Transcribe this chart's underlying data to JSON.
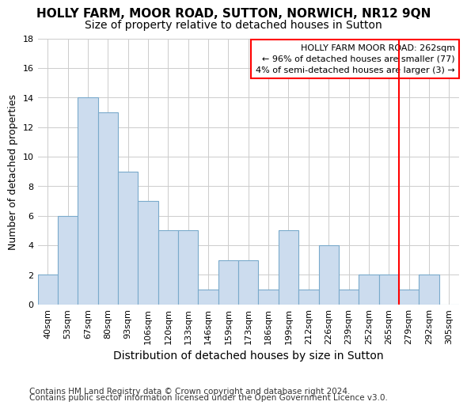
{
  "title": "HOLLY FARM, MOOR ROAD, SUTTON, NORWICH, NR12 9QN",
  "subtitle": "Size of property relative to detached houses in Sutton",
  "xlabel": "Distribution of detached houses by size in Sutton",
  "ylabel": "Number of detached properties",
  "categories": [
    "40sqm",
    "53sqm",
    "67sqm",
    "80sqm",
    "93sqm",
    "106sqm",
    "120sqm",
    "133sqm",
    "146sqm",
    "159sqm",
    "173sqm",
    "186sqm",
    "199sqm",
    "212sqm",
    "226sqm",
    "239sqm",
    "252sqm",
    "265sqm",
    "279sqm",
    "292sqm",
    "305sqm"
  ],
  "values": [
    2,
    6,
    14,
    13,
    9,
    7,
    5,
    5,
    1,
    3,
    3,
    1,
    5,
    1,
    4,
    1,
    2,
    2,
    1,
    2,
    0
  ],
  "bar_color": "#ccdcee",
  "bar_edge_color": "#7aaacb",
  "red_line_index": 17,
  "annotation_line1": "HOLLY FARM MOOR ROAD: 262sqm",
  "annotation_line2": "← 96% of detached houses are smaller (77)",
  "annotation_line3": "4% of semi-detached houses are larger (3) →",
  "ylim": [
    0,
    18
  ],
  "yticks": [
    0,
    2,
    4,
    6,
    8,
    10,
    12,
    14,
    16,
    18
  ],
  "footer_line1": "Contains HM Land Registry data © Crown copyright and database right 2024.",
  "footer_line2": "Contains public sector information licensed under the Open Government Licence v3.0.",
  "bg_color": "#ffffff",
  "plot_bg_color": "#ffffff",
  "grid_color": "#cccccc",
  "title_fontsize": 11,
  "subtitle_fontsize": 10,
  "xlabel_fontsize": 10,
  "ylabel_fontsize": 9,
  "tick_fontsize": 8,
  "footer_fontsize": 7.5
}
